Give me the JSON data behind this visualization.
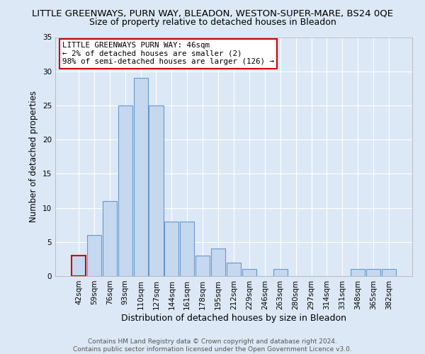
{
  "title": "LITTLE GREENWAYS, PURN WAY, BLEADON, WESTON-SUPER-MARE, BS24 0QE",
  "subtitle": "Size of property relative to detached houses in Bleadon",
  "xlabel": "Distribution of detached houses by size in Bleadon",
  "ylabel": "Number of detached properties",
  "bar_labels": [
    "42sqm",
    "59sqm",
    "76sqm",
    "93sqm",
    "110sqm",
    "127sqm",
    "144sqm",
    "161sqm",
    "178sqm",
    "195sqm",
    "212sqm",
    "229sqm",
    "246sqm",
    "263sqm",
    "280sqm",
    "297sqm",
    "314sqm",
    "331sqm",
    "348sqm",
    "365sqm",
    "382sqm"
  ],
  "bar_values": [
    3,
    6,
    11,
    25,
    29,
    25,
    8,
    8,
    3,
    4,
    2,
    1,
    0,
    1,
    0,
    0,
    0,
    0,
    1,
    1,
    1
  ],
  "bar_color": "#c5d8f0",
  "bar_edge_color": "#6699cc",
  "highlight_bar_index": 0,
  "highlight_bar_edge_color": "#cc0000",
  "ylim": [
    0,
    35
  ],
  "yticks": [
    0,
    5,
    10,
    15,
    20,
    25,
    30,
    35
  ],
  "annotation_title": "LITTLE GREENWAYS PURN WAY: 46sqm",
  "annotation_line1": "← 2% of detached houses are smaller (2)",
  "annotation_line2": "98% of semi-detached houses are larger (126) →",
  "annotation_box_edge_color": "#cc0000",
  "footer_line1": "Contains HM Land Registry data © Crown copyright and database right 2024.",
  "footer_line2": "Contains public sector information licensed under the Open Government Licence v3.0.",
  "bg_color": "#dce8f5",
  "plot_bg_color": "#dce8f5",
  "grid_color": "#ffffff",
  "title_fontsize": 9.5,
  "subtitle_fontsize": 9.0,
  "xlabel_fontsize": 9.0,
  "ylabel_fontsize": 8.5,
  "tick_fontsize": 7.5,
  "annotation_fontsize": 7.8,
  "footer_fontsize": 6.5
}
